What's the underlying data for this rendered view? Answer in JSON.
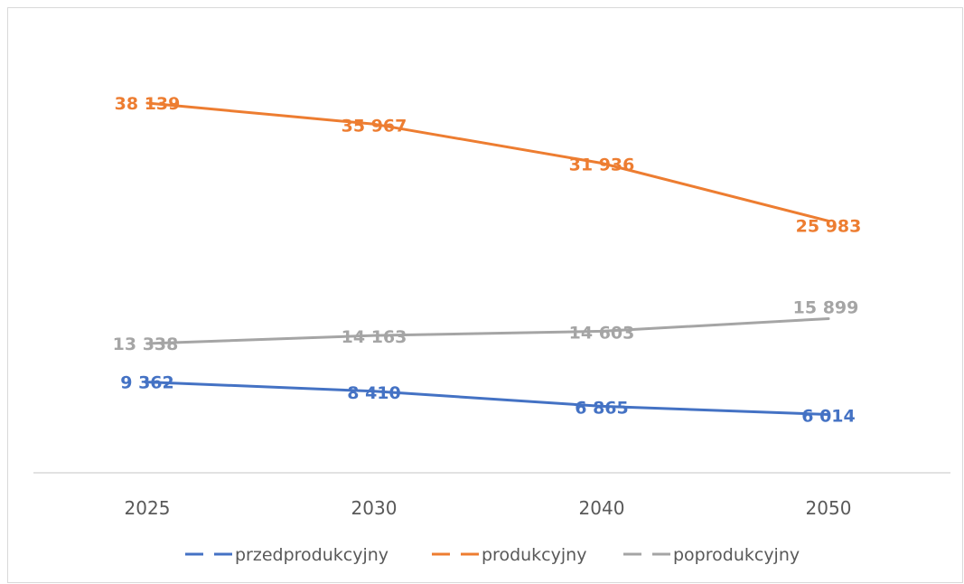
{
  "chart_data": {
    "type": "line",
    "categories": [
      "2025",
      "2030",
      "2040",
      "2050"
    ],
    "series": [
      {
        "name": "przedprodukcyjny",
        "color": "#4472c4",
        "values": [
          9362,
          8410,
          6865,
          6014
        ],
        "labels": [
          "9 362",
          "8 410",
          "6 865",
          "6 014"
        ]
      },
      {
        "name": "produkcyjny",
        "color": "#ed7d31",
        "values": [
          38139,
          35967,
          31936,
          25983
        ],
        "labels": [
          "38 139",
          "35 967",
          "31 936",
          "25 983"
        ]
      },
      {
        "name": "poprodukcyjny",
        "color": "#a5a5a5",
        "values": [
          13338,
          14163,
          14603,
          15899
        ],
        "labels": [
          "13 338",
          "14 163",
          "14 603",
          "15 899"
        ]
      }
    ],
    "ylim": [
      0,
      45000
    ],
    "grid": false,
    "legend": "bottom",
    "axis_color": "#d9d9d9",
    "tick_color": "#595959"
  }
}
